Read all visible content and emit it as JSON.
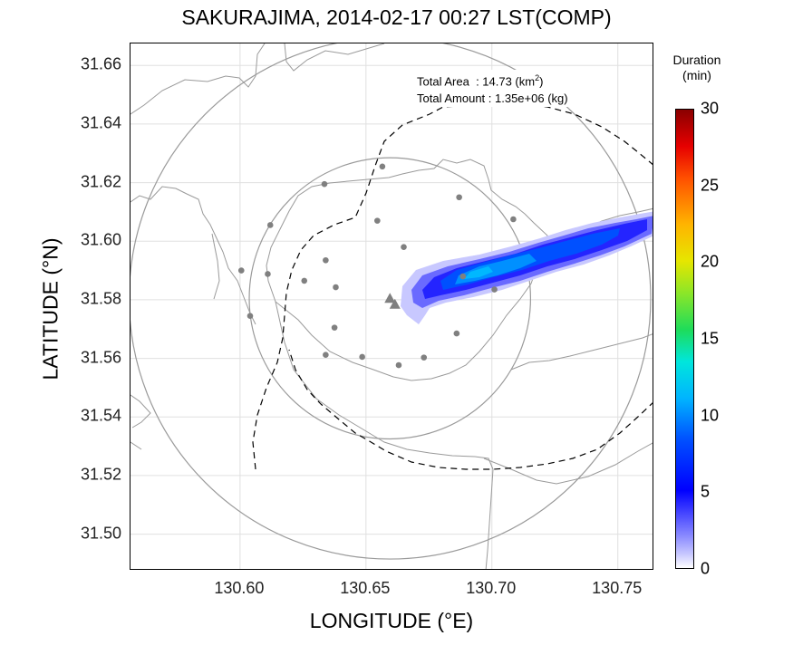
{
  "title": "SAKURAJIMA, 2014-02-17 00:27 LST(COMP)",
  "xlabel": "LONGITUDE (°E)",
  "ylabel": "LATITUDE (°N)",
  "map_data": {
    "lon_range": [
      130.5565,
      130.7645
    ],
    "lat_range": [
      31.4875,
      31.6675
    ],
    "lon_ticks": [
      "130.60",
      "130.65",
      "130.70",
      "130.75"
    ],
    "lat_ticks": [
      "31.50",
      "31.52",
      "31.54",
      "31.56",
      "31.58",
      "31.60",
      "31.62",
      "31.64",
      "31.66"
    ],
    "grid": true,
    "vent_markers": [
      [
        130.6595,
        31.5805
      ],
      [
        130.6615,
        31.5785
      ]
    ],
    "stations": [
      [
        130.6565,
        31.6255
      ],
      [
        130.6335,
        31.6195
      ],
      [
        130.687,
        31.615
      ],
      [
        130.6545,
        31.607
      ],
      [
        130.612,
        31.6055
      ],
      [
        130.7085,
        31.6075
      ],
      [
        130.665,
        31.598
      ],
      [
        130.6005,
        31.59
      ],
      [
        130.611,
        31.5888
      ],
      [
        130.634,
        31.5935
      ],
      [
        130.6255,
        31.5865
      ],
      [
        130.638,
        31.5843
      ],
      [
        130.701,
        31.5835
      ],
      [
        130.6885,
        31.588
      ],
      [
        130.604,
        31.5745
      ],
      [
        130.6375,
        31.5705
      ],
      [
        130.686,
        31.5685
      ],
      [
        130.634,
        31.5612
      ],
      [
        130.6485,
        31.5605
      ],
      [
        130.673,
        31.5603
      ],
      [
        130.663,
        31.5577
      ]
    ],
    "inner_circle": {
      "lon": 130.6595,
      "lat": 31.5805,
      "radius_deg_lat": 0.048
    },
    "outer_circle": {
      "lon": 130.6595,
      "lat": 31.5805,
      "radius_deg_lat": 0.089
    }
  },
  "stats": {
    "area_label": "Total Area",
    "area_value": ": 14.73 (km",
    "area_sup": "2",
    "area_close": ")",
    "amount_label": "Total Amount",
    "amount_value": ": 1.35e+06 (kg)"
  },
  "colorbar": {
    "title_line1": "Duration",
    "title_line2": "(min)",
    "range": [
      0,
      30
    ],
    "ticks": [
      "0",
      "5",
      "10",
      "15",
      "20",
      "25",
      "30"
    ]
  }
}
